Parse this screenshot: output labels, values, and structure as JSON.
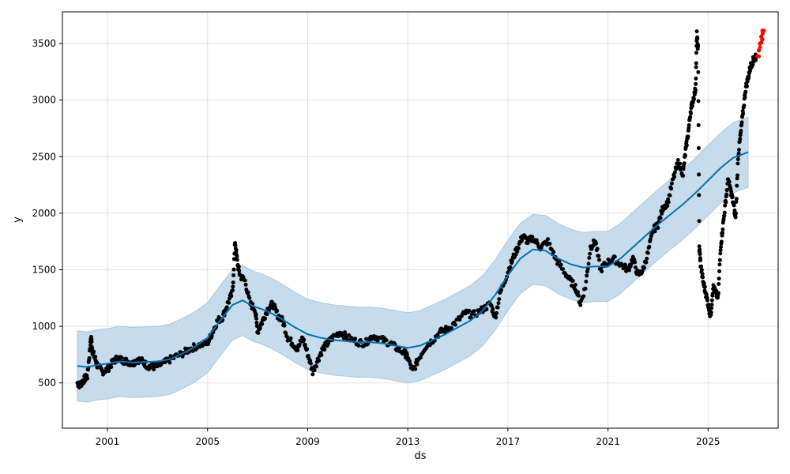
{
  "chart_data": {
    "type": "line",
    "xlabel": "ds",
    "ylabel": "y",
    "x_ticks": [
      2001,
      2005,
      2009,
      2013,
      2017,
      2021,
      2025
    ],
    "y_ticks": [
      500,
      1000,
      1500,
      2000,
      2500,
      3000,
      3500
    ],
    "xlim": [
      1999.2,
      2027.8
    ],
    "ylim": [
      100,
      3780
    ],
    "grid": true,
    "colors": {
      "observed": "#000000",
      "recent_observed": "#ff0000",
      "forecast_line": "#0072b2",
      "uncertainty_band": "#c6dcec"
    },
    "series": [
      {
        "kind": "forecast",
        "points": [
          [
            1999.8,
            650
          ],
          [
            2000.2,
            640
          ],
          [
            2000.6,
            660
          ],
          [
            2001.0,
            670
          ],
          [
            2001.5,
            690
          ],
          [
            2002.0,
            680
          ],
          [
            2002.5,
            685
          ],
          [
            2003.0,
            690
          ],
          [
            2003.5,
            710
          ],
          [
            2004.0,
            760
          ],
          [
            2004.5,
            820
          ],
          [
            2005.0,
            900
          ],
          [
            2005.5,
            1050
          ],
          [
            2006.0,
            1190
          ],
          [
            2006.4,
            1230
          ],
          [
            2006.8,
            1180
          ],
          [
            2007.2,
            1150
          ],
          [
            2007.6,
            1110
          ],
          [
            2008.0,
            1060
          ],
          [
            2008.5,
            990
          ],
          [
            2009.0,
            930
          ],
          [
            2009.5,
            900
          ],
          [
            2010.0,
            880
          ],
          [
            2010.5,
            870
          ],
          [
            2011.0,
            860
          ],
          [
            2011.5,
            860
          ],
          [
            2012.0,
            850
          ],
          [
            2012.5,
            830
          ],
          [
            2013.0,
            810
          ],
          [
            2013.5,
            830
          ],
          [
            2014.0,
            880
          ],
          [
            2014.5,
            930
          ],
          [
            2015.0,
            990
          ],
          [
            2015.5,
            1050
          ],
          [
            2016.0,
            1140
          ],
          [
            2016.5,
            1280
          ],
          [
            2017.0,
            1450
          ],
          [
            2017.5,
            1600
          ],
          [
            2018.0,
            1680
          ],
          [
            2018.5,
            1670
          ],
          [
            2019.0,
            1600
          ],
          [
            2019.5,
            1550
          ],
          [
            2020.0,
            1520
          ],
          [
            2020.5,
            1530
          ],
          [
            2021.0,
            1530
          ],
          [
            2021.5,
            1600
          ],
          [
            2022.0,
            1700
          ],
          [
            2022.5,
            1800
          ],
          [
            2023.0,
            1900
          ],
          [
            2023.5,
            1990
          ],
          [
            2024.0,
            2080
          ],
          [
            2024.5,
            2180
          ],
          [
            2025.0,
            2290
          ],
          [
            2025.5,
            2400
          ],
          [
            2026.0,
            2490
          ],
          [
            2026.6,
            2540
          ]
        ],
        "band_width": 310
      },
      {
        "kind": "observed",
        "points": [
          [
            1999.8,
            500
          ],
          [
            1999.9,
            480
          ],
          [
            2000.0,
            510
          ],
          [
            2000.1,
            540
          ],
          [
            2000.2,
            560
          ],
          [
            2000.3,
            800
          ],
          [
            2000.35,
            900
          ],
          [
            2000.4,
            780
          ],
          [
            2000.5,
            720
          ],
          [
            2000.6,
            650
          ],
          [
            2000.8,
            600
          ],
          [
            2001.0,
            620
          ],
          [
            2001.2,
            680
          ],
          [
            2001.4,
            720
          ],
          [
            2001.6,
            700
          ],
          [
            2001.8,
            690
          ],
          [
            2002.0,
            670
          ],
          [
            2002.2,
            710
          ],
          [
            2002.4,
            690
          ],
          [
            2002.6,
            650
          ],
          [
            2002.8,
            640
          ],
          [
            2003.0,
            650
          ],
          [
            2003.3,
            680
          ],
          [
            2003.6,
            720
          ],
          [
            2004.0,
            760
          ],
          [
            2004.3,
            800
          ],
          [
            2004.6,
            830
          ],
          [
            2005.0,
            850
          ],
          [
            2005.2,
            950
          ],
          [
            2005.4,
            1050
          ],
          [
            2005.6,
            1080
          ],
          [
            2005.8,
            1200
          ],
          [
            2006.0,
            1300
          ],
          [
            2006.1,
            1750
          ],
          [
            2006.2,
            1550
          ],
          [
            2006.3,
            1450
          ],
          [
            2006.5,
            1400
          ],
          [
            2006.7,
            1200
          ],
          [
            2006.9,
            1150
          ],
          [
            2007.0,
            950
          ],
          [
            2007.2,
            1050
          ],
          [
            2007.4,
            1150
          ],
          [
            2007.6,
            1200
          ],
          [
            2007.8,
            1100
          ],
          [
            2008.0,
            1050
          ],
          [
            2008.2,
            900
          ],
          [
            2008.4,
            850
          ],
          [
            2008.6,
            800
          ],
          [
            2008.8,
            900
          ],
          [
            2009.0,
            760
          ],
          [
            2009.2,
            600
          ],
          [
            2009.4,
            700
          ],
          [
            2009.6,
            800
          ],
          [
            2009.8,
            850
          ],
          [
            2010.0,
            900
          ],
          [
            2010.3,
            950
          ],
          [
            2010.6,
            900
          ],
          [
            2011.0,
            860
          ],
          [
            2011.3,
            850
          ],
          [
            2011.6,
            920
          ],
          [
            2012.0,
            880
          ],
          [
            2012.3,
            850
          ],
          [
            2012.6,
            800
          ],
          [
            2012.9,
            760
          ],
          [
            2013.0,
            720
          ],
          [
            2013.2,
            600
          ],
          [
            2013.4,
            700
          ],
          [
            2013.7,
            820
          ],
          [
            2014.0,
            880
          ],
          [
            2014.3,
            950
          ],
          [
            2014.6,
            980
          ],
          [
            2015.0,
            1050
          ],
          [
            2015.3,
            1120
          ],
          [
            2015.6,
            1100
          ],
          [
            2016.0,
            1150
          ],
          [
            2016.3,
            1200
          ],
          [
            2016.5,
            1080
          ],
          [
            2016.7,
            1300
          ],
          [
            2017.0,
            1480
          ],
          [
            2017.2,
            1600
          ],
          [
            2017.4,
            1700
          ],
          [
            2017.6,
            1800
          ],
          [
            2017.8,
            1750
          ],
          [
            2018.0,
            1780
          ],
          [
            2018.3,
            1700
          ],
          [
            2018.6,
            1750
          ],
          [
            2018.9,
            1600
          ],
          [
            2019.2,
            1500
          ],
          [
            2019.5,
            1400
          ],
          [
            2019.7,
            1350
          ],
          [
            2019.9,
            1200
          ],
          [
            2020.1,
            1350
          ],
          [
            2020.3,
            1700
          ],
          [
            2020.5,
            1750
          ],
          [
            2020.7,
            1500
          ],
          [
            2020.9,
            1550
          ],
          [
            2021.2,
            1600
          ],
          [
            2021.5,
            1550
          ],
          [
            2021.8,
            1500
          ],
          [
            2022.0,
            1600
          ],
          [
            2022.2,
            1450
          ],
          [
            2022.4,
            1500
          ],
          [
            2022.6,
            1650
          ],
          [
            2022.8,
            1850
          ],
          [
            2023.0,
            1900
          ],
          [
            2023.2,
            2050
          ],
          [
            2023.4,
            2100
          ],
          [
            2023.6,
            2300
          ],
          [
            2023.8,
            2450
          ],
          [
            2024.0,
            2350
          ],
          [
            2024.1,
            2550
          ],
          [
            2024.2,
            2700
          ],
          [
            2024.3,
            2900
          ],
          [
            2024.4,
            3000
          ],
          [
            2024.5,
            3100
          ],
          [
            2024.55,
            3580
          ],
          [
            2024.6,
            3450
          ],
          [
            2024.65,
            1700
          ],
          [
            2024.7,
            1550
          ],
          [
            2024.8,
            1400
          ],
          [
            2024.9,
            1300
          ],
          [
            2025.0,
            1200
          ],
          [
            2025.1,
            1080
          ],
          [
            2025.2,
            1350
          ],
          [
            2025.3,
            1300
          ],
          [
            2025.4,
            1250
          ],
          [
            2025.5,
            1700
          ],
          [
            2025.6,
            1900
          ],
          [
            2025.7,
            2100
          ],
          [
            2025.8,
            2300
          ],
          [
            2025.9,
            2200
          ],
          [
            2026.0,
            2100
          ],
          [
            2026.1,
            1950
          ],
          [
            2026.2,
            2500
          ],
          [
            2026.3,
            2700
          ],
          [
            2026.4,
            2900
          ],
          [
            2026.5,
            3100
          ],
          [
            2026.6,
            3200
          ],
          [
            2026.7,
            3300
          ],
          [
            2026.8,
            3350
          ],
          [
            2026.9,
            3380
          ]
        ]
      },
      {
        "kind": "recent_observed",
        "points": [
          [
            2027.0,
            3400
          ],
          [
            2027.05,
            3450
          ],
          [
            2027.1,
            3500
          ],
          [
            2027.15,
            3550
          ],
          [
            2027.2,
            3600
          ]
        ]
      }
    ]
  }
}
